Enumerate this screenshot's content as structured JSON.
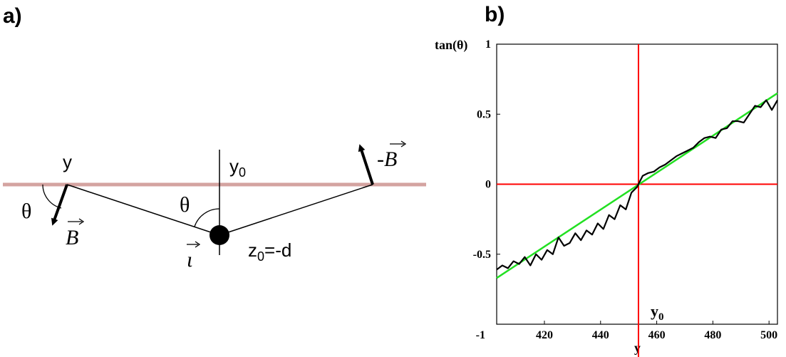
{
  "panel_a": {
    "label": "a)",
    "label_y": "y",
    "label_y0_base": "y",
    "label_y0_sub": "0",
    "label_theta_left": "θ",
    "label_theta_center": "θ",
    "label_B": "B",
    "label_minus_B_prefix": "-",
    "label_minus_B": "B",
    "label_i": "ι",
    "label_z0_base": "z",
    "label_z0_sub": "0",
    "label_z0_rest": "=-d",
    "colors": {
      "surface_line": "#d4a3a0",
      "ink": "#000000"
    }
  },
  "panel_b": {
    "label": "b)",
    "ylabel": "tan(θ)",
    "xlabel": "y",
    "y0_label_base": "y",
    "y0_label_sub": "0",
    "colors": {
      "data": "#000000",
      "fit": "#22e022",
      "crosshair": "#ff0000"
    }
  },
  "chart_data": {
    "type": "line",
    "xlabel": "y",
    "ylabel": "tan(θ)",
    "xlim": [
      403,
      503
    ],
    "ylim": [
      -1,
      1
    ],
    "xticks": [
      420,
      440,
      460,
      480,
      500
    ],
    "yticks": [
      -1,
      -0.5,
      0,
      0.5,
      1
    ],
    "ytick_labels": [
      "-1",
      "-0.5",
      "0",
      "0.5",
      "1"
    ],
    "crosshair": {
      "x": 453.5,
      "y": 0
    },
    "series": [
      {
        "x": [
          403,
          405,
          407,
          409,
          411,
          413,
          415,
          417,
          419,
          421,
          423,
          425,
          427,
          429,
          431,
          433,
          435,
          437,
          439,
          441,
          443,
          445,
          447,
          449,
          451,
          453,
          455,
          457,
          459,
          461,
          463,
          465,
          467,
          469,
          471,
          473,
          475,
          477,
          479,
          481,
          483,
          485,
          487,
          489,
          491,
          493,
          495,
          497,
          499,
          501,
          503
        ],
        "y": [
          -0.61,
          -0.58,
          -0.6,
          -0.55,
          -0.57,
          -0.52,
          -0.58,
          -0.5,
          -0.54,
          -0.47,
          -0.5,
          -0.38,
          -0.44,
          -0.42,
          -0.35,
          -0.4,
          -0.33,
          -0.36,
          -0.28,
          -0.32,
          -0.22,
          -0.25,
          -0.15,
          -0.18,
          -0.06,
          -0.02,
          0.06,
          0.08,
          0.09,
          0.12,
          0.14,
          0.17,
          0.2,
          0.22,
          0.24,
          0.26,
          0.3,
          0.33,
          0.34,
          0.33,
          0.39,
          0.4,
          0.45,
          0.45,
          0.44,
          0.5,
          0.56,
          0.55,
          0.6,
          0.53,
          0.6
        ]
      },
      {
        "x": [
          403,
          503
        ],
        "y": [
          -0.67,
          0.65
        ]
      }
    ]
  }
}
